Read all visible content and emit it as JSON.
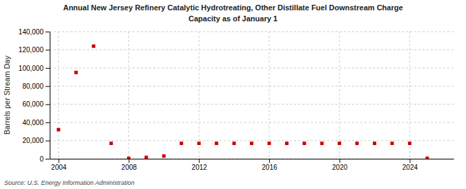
{
  "chart_data": {
    "type": "scatter",
    "title": "Annual New Jersey Refinery Catalytic Hydrotreating, Other Distillate Fuel Downstream Charge",
    "subtitle": "Capacity as of January 1",
    "y_label": "Barrels per Stream Day",
    "annotations": [
      "Source: U.S. Energy Information Administration"
    ],
    "x": [
      2004,
      2005,
      2006,
      2007,
      2008,
      2009,
      2010,
      2011,
      2012,
      2013,
      2014,
      2015,
      2016,
      2017,
      2018,
      2019,
      2020,
      2021,
      2022,
      2023,
      2024,
      2025
    ],
    "values": [
      32000,
      95000,
      124000,
      17000,
      500,
      1500,
      3000,
      17000,
      17000,
      17000,
      17000,
      17000,
      17000,
      17000,
      17000,
      17000,
      17000,
      17000,
      17000,
      17000,
      17000,
      500
    ],
    "color": "#cc0000",
    "marker": "square",
    "xlim": [
      2003.5,
      2026.5
    ],
    "xticks": [
      2004,
      2008,
      2012,
      2016,
      2020,
      2024
    ],
    "ylim": [
      0,
      140000
    ],
    "yticks": [
      0,
      {
        "value": 20000,
        "label": "20,000"
      },
      {
        "value": 40000,
        "label": "40,000"
      },
      {
        "value": 60000,
        "label": "60,000"
      },
      {
        "value": 80000,
        "label": "80,000"
      },
      {
        "value": 100000,
        "label": "100,000"
      },
      {
        "value": 120000,
        "label": "120,000"
      },
      {
        "value": 140000,
        "label": "140,000"
      }
    ],
    "grid": true
  }
}
